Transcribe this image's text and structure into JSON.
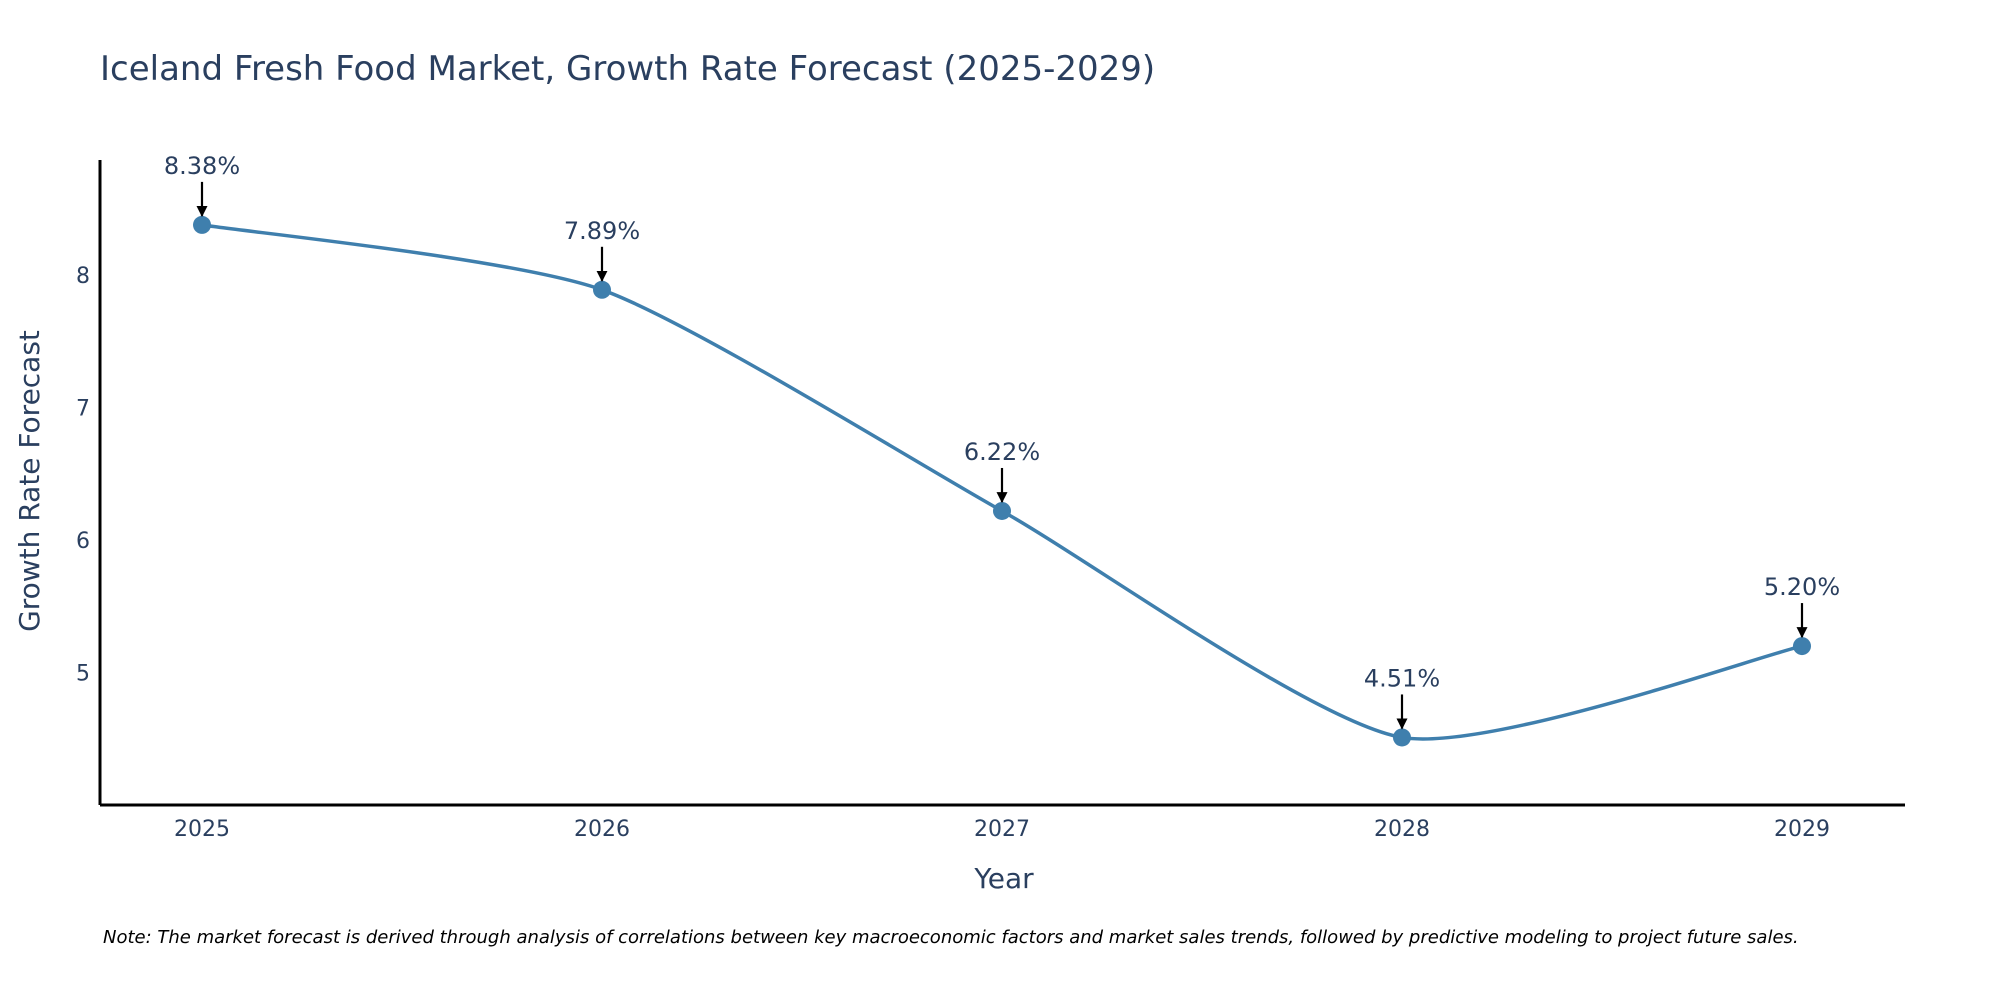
{
  "chart_data": {
    "type": "line",
    "title": "Iceland Fresh Food Market, Growth Rate Forecast (2025-2029)",
    "xlabel": "Year",
    "ylabel": "Growth Rate Forecast",
    "x": [
      "2025",
      "2026",
      "2027",
      "2028",
      "2029"
    ],
    "values": [
      8.38,
      7.89,
      6.22,
      4.51,
      5.2
    ],
    "data_labels": [
      "8.38%",
      "7.89%",
      "6.22%",
      "4.51%",
      "5.20%"
    ],
    "y_ticks": [
      "5",
      "6",
      "7",
      "8"
    ],
    "ylim": [
      4,
      8.87
    ],
    "grid": false,
    "legend": "none",
    "line_shape": "spline",
    "colors": {
      "line": "#3f7fad",
      "marker": "#3f7fad",
      "arrow": "#000000",
      "axis": "#000000",
      "text": "#2a3f5f"
    }
  },
  "footnote": "Note: The market forecast is derived through analysis of correlations between key macroeconomic factors and market sales trends, followed by predictive modeling to project future sales."
}
